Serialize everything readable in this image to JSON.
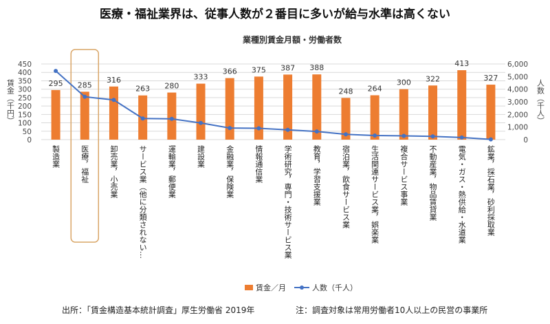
{
  "page": {
    "title": "医療・福祉業界は、従事人数が２番目に多いが給与水準は高くない",
    "footer_source": "出所：「賃金構造基本統計調査」厚生労働省 2019年",
    "footer_note": "注：調査対象は常用労働者10人以上の民営の事業所"
  },
  "chart_data": {
    "type": "bar",
    "title": "業種別賃金月額・労働者数",
    "ylabel_left": "賃金（千円）",
    "ylabel_right": "人数（千人）",
    "ylim_left": [
      0,
      450
    ],
    "ylim_right": [
      0,
      6000
    ],
    "yticks_left": [
      "0",
      "50",
      "100",
      "150",
      "200",
      "250",
      "300",
      "350",
      "400",
      "450"
    ],
    "yticks_right": [
      "0",
      "1,000",
      "2,000",
      "3,000",
      "4,000",
      "5,000",
      "6,000"
    ],
    "categories": [
      "製造業",
      "医療，福祉",
      "卸売業，小売業",
      "サービス業（他に分類されない…",
      "運輸業，郵便業",
      "建設業",
      "金融業，保険業",
      "情報通信業",
      "学術研究，専門・技術サービス業",
      "教育，学習支援業",
      "宿泊業，飲食サービス業",
      "生活関連サービス業，娯楽業",
      "複合サービス事業",
      "不動産業，物品賃貸業",
      "電気・ガス・熱供給・水道業",
      "鉱業，採石業，砂利採取業"
    ],
    "series": [
      {
        "name": "賃金／月",
        "axis": "left",
        "kind": "bar",
        "color": "#ED7D31",
        "values": [
          295,
          285,
          316,
          263,
          280,
          333,
          366,
          375,
          387,
          388,
          248,
          264,
          300,
          322,
          413,
          327
        ]
      },
      {
        "name": "人数（千人）",
        "axis": "right",
        "kind": "line",
        "color": "#4472C4",
        "values": [
          5450,
          3400,
          3150,
          1680,
          1650,
          1320,
          920,
          900,
          780,
          650,
          420,
          330,
          300,
          260,
          170,
          20
        ]
      }
    ],
    "highlight_index": 1,
    "highlight_color": "#D9A566",
    "legend_position": "bottom",
    "grid": true
  }
}
